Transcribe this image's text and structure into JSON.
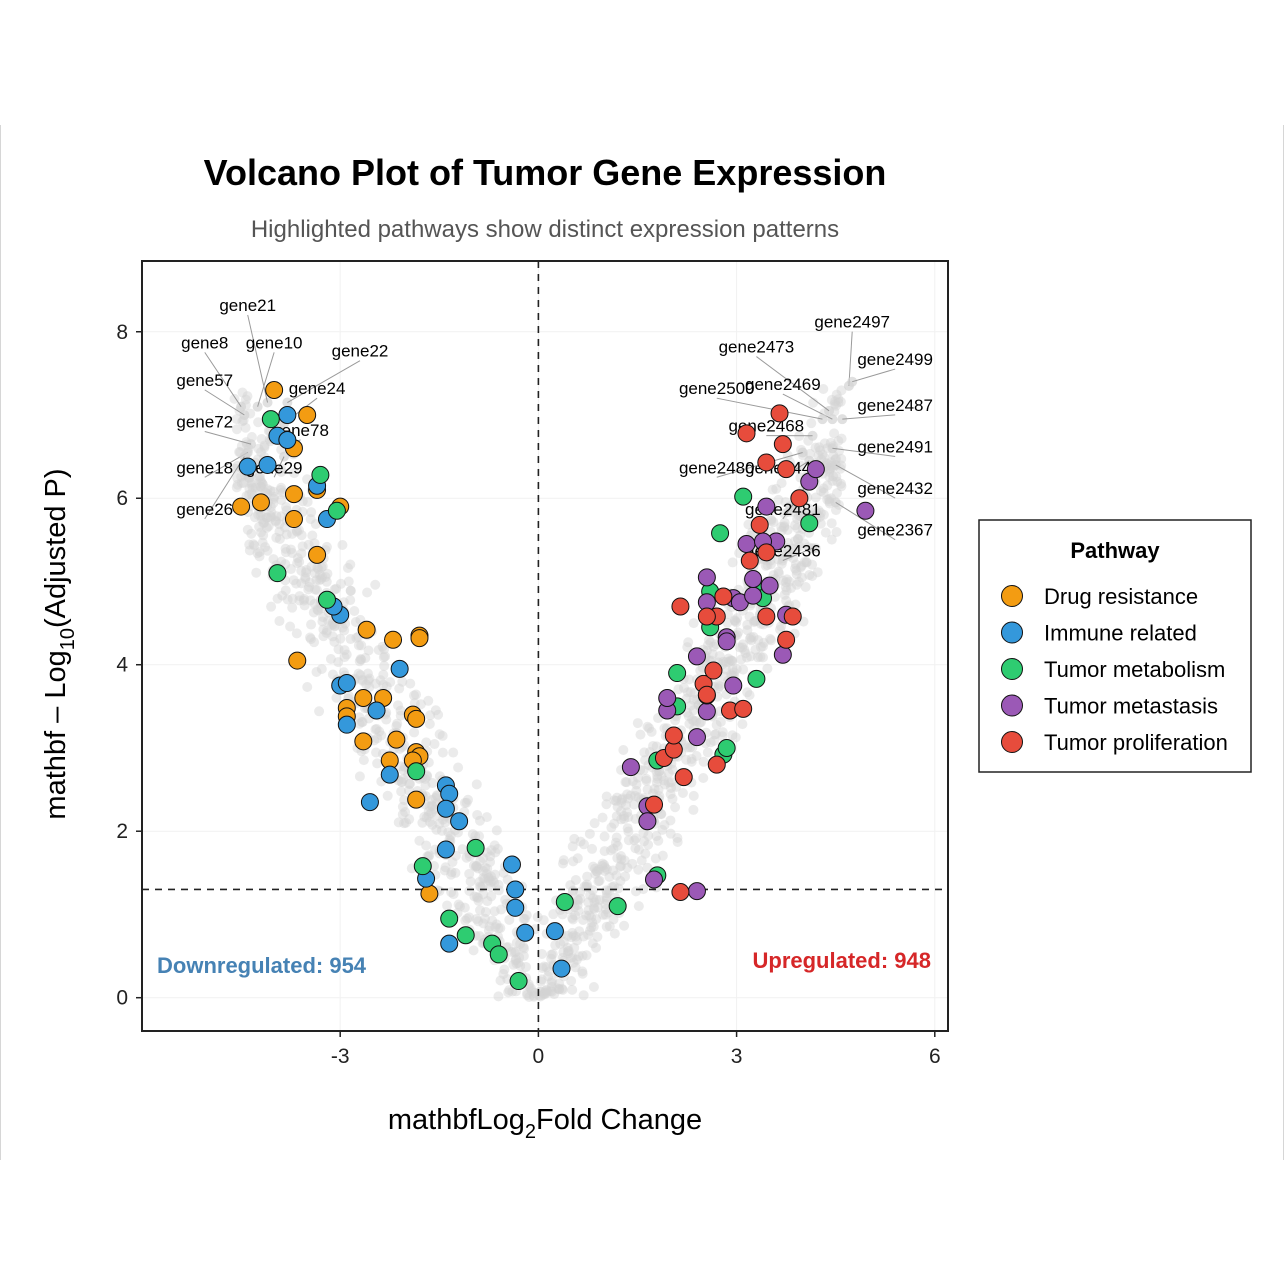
{
  "chart_data": {
    "type": "scatter",
    "title": "Volcano Plot of Tumor Gene Expression",
    "subtitle": "Highlighted pathways show distinct expression patterns",
    "xlabel": {
      "prefix": "mathbfLog",
      "sub": "2",
      "suffix": "Fold Change"
    },
    "ylabel": {
      "prefix": "mathbf – Log",
      "sub": "10",
      "suffix": "(Adjusted P)"
    },
    "xlim": [
      -6,
      6.2
    ],
    "ylim": [
      -0.4,
      8.85
    ],
    "x_ticks": [
      -3,
      0,
      3,
      6
    ],
    "y_ticks": [
      0,
      2,
      4,
      6,
      8
    ],
    "grid": true,
    "thresholds": {
      "log2fc": 0,
      "neg_log10_p": 1.3
    },
    "annotations": {
      "down": {
        "text": "Downregulated: 954",
        "color": "#4682b4"
      },
      "up": {
        "text": "Upregulated: 948",
        "color": "#d62728"
      }
    },
    "legend": {
      "title": "Pathway",
      "placement": "right",
      "items": [
        {
          "name": "Drug resistance",
          "color": "#f39c12"
        },
        {
          "name": "Immune related",
          "color": "#3498db"
        },
        {
          "name": "Tumor metabolism",
          "color": "#2ecc71"
        },
        {
          "name": "Tumor metastasis",
          "color": "#9b59b6"
        },
        {
          "name": "Tumor proliferation",
          "color": "#e74c3c"
        }
      ]
    },
    "background_color": "#d3d3d3",
    "series": [
      {
        "name": "Drug resistance",
        "color": "#f39c12",
        "points": [
          [
            -4.0,
            7.3
          ],
          [
            -3.5,
            7.0
          ],
          [
            -3.7,
            6.6
          ],
          [
            -4.5,
            5.9
          ],
          [
            -4.2,
            5.95
          ],
          [
            -3.7,
            6.05
          ],
          [
            -3.35,
            6.1
          ],
          [
            -3.7,
            5.75
          ],
          [
            -3.0,
            5.9
          ],
          [
            -3.35,
            5.32
          ],
          [
            -3.65,
            4.05
          ],
          [
            -2.6,
            4.42
          ],
          [
            -2.2,
            4.3
          ],
          [
            -1.8,
            4.35
          ],
          [
            -1.8,
            4.32
          ],
          [
            -2.65,
            3.6
          ],
          [
            -2.35,
            3.6
          ],
          [
            -2.9,
            3.48
          ],
          [
            -2.9,
            3.38
          ],
          [
            -1.9,
            3.4
          ],
          [
            -1.85,
            3.35
          ],
          [
            -2.65,
            3.08
          ],
          [
            -2.15,
            3.1
          ],
          [
            -1.85,
            2.95
          ],
          [
            -1.8,
            2.9
          ],
          [
            -1.9,
            2.85
          ],
          [
            -2.25,
            2.85
          ],
          [
            -1.85,
            2.38
          ],
          [
            -1.65,
            1.25
          ]
        ]
      },
      {
        "name": "Immune related",
        "color": "#3498db",
        "points": [
          [
            -3.8,
            7.0
          ],
          [
            -3.95,
            6.75
          ],
          [
            -3.8,
            6.7
          ],
          [
            -4.4,
            6.38
          ],
          [
            -4.1,
            6.4
          ],
          [
            -3.35,
            6.15
          ],
          [
            -3.2,
            5.75
          ],
          [
            -3.0,
            4.6
          ],
          [
            -3.1,
            4.7
          ],
          [
            -3.0,
            3.75
          ],
          [
            -2.9,
            3.78
          ],
          [
            -2.9,
            3.28
          ],
          [
            -2.45,
            3.45
          ],
          [
            -2.1,
            3.95
          ],
          [
            -2.25,
            2.68
          ],
          [
            -2.55,
            2.35
          ],
          [
            -1.4,
            2.55
          ],
          [
            -1.35,
            2.45
          ],
          [
            -1.4,
            2.27
          ],
          [
            -1.2,
            2.12
          ],
          [
            -1.4,
            1.78
          ],
          [
            -1.7,
            1.43
          ],
          [
            -1.35,
            0.65
          ],
          [
            -0.4,
            1.6
          ],
          [
            -0.35,
            1.3
          ],
          [
            -0.35,
            1.08
          ],
          [
            -0.2,
            0.78
          ],
          [
            0.25,
            0.8
          ],
          [
            0.35,
            0.35
          ]
        ]
      },
      {
        "name": "Tumor metabolism",
        "color": "#2ecc71",
        "points": [
          [
            -4.05,
            6.95
          ],
          [
            -3.3,
            6.28
          ],
          [
            -3.05,
            5.85
          ],
          [
            -3.95,
            5.1
          ],
          [
            -3.2,
            4.78
          ],
          [
            -1.85,
            2.72
          ],
          [
            -1.75,
            1.58
          ],
          [
            -1.35,
            0.95
          ],
          [
            -1.1,
            0.75
          ],
          [
            -0.95,
            1.8
          ],
          [
            -0.7,
            0.65
          ],
          [
            -0.6,
            0.52
          ],
          [
            -0.3,
            0.2
          ],
          [
            0.4,
            1.15
          ],
          [
            1.2,
            1.1
          ],
          [
            1.8,
            1.47
          ],
          [
            1.8,
            2.85
          ],
          [
            2.1,
            3.5
          ],
          [
            2.1,
            3.9
          ],
          [
            2.6,
            4.45
          ],
          [
            2.6,
            4.88
          ],
          [
            2.8,
            2.92
          ],
          [
            2.85,
            3.0
          ],
          [
            2.75,
            5.58
          ],
          [
            3.1,
            6.02
          ],
          [
            3.35,
            4.88
          ],
          [
            3.4,
            4.8
          ],
          [
            3.3,
            3.83
          ],
          [
            4.1,
            5.7
          ]
        ]
      },
      {
        "name": "Tumor metastasis",
        "color": "#9b59b6",
        "points": [
          [
            1.4,
            2.77
          ],
          [
            1.65,
            2.3
          ],
          [
            1.65,
            2.12
          ],
          [
            1.75,
            1.42
          ],
          [
            2.4,
            1.28
          ],
          [
            1.95,
            3.45
          ],
          [
            1.95,
            3.6
          ],
          [
            2.4,
            3.13
          ],
          [
            2.4,
            4.1
          ],
          [
            2.55,
            5.05
          ],
          [
            2.55,
            4.75
          ],
          [
            2.55,
            3.44
          ],
          [
            2.85,
            4.33
          ],
          [
            2.85,
            4.28
          ],
          [
            2.95,
            3.75
          ],
          [
            2.95,
            4.8
          ],
          [
            3.05,
            4.75
          ],
          [
            3.15,
            5.45
          ],
          [
            3.25,
            4.83
          ],
          [
            3.25,
            5.03
          ],
          [
            3.45,
            5.9
          ],
          [
            3.5,
            4.95
          ],
          [
            3.6,
            5.48
          ],
          [
            3.7,
            4.12
          ],
          [
            3.75,
            4.6
          ],
          [
            4.1,
            6.2
          ],
          [
            4.2,
            6.35
          ],
          [
            4.95,
            5.85
          ],
          [
            3.4,
            5.48
          ]
        ]
      },
      {
        "name": "Tumor proliferation",
        "color": "#e74c3c",
        "points": [
          [
            1.75,
            2.32
          ],
          [
            1.9,
            2.88
          ],
          [
            2.05,
            2.98
          ],
          [
            2.05,
            3.15
          ],
          [
            2.15,
            4.7
          ],
          [
            2.2,
            2.65
          ],
          [
            2.15,
            1.27
          ],
          [
            2.5,
            3.77
          ],
          [
            2.55,
            3.63
          ],
          [
            2.65,
            3.93
          ],
          [
            2.7,
            2.8
          ],
          [
            2.8,
            4.82
          ],
          [
            2.9,
            3.45
          ],
          [
            3.1,
            3.47
          ],
          [
            3.15,
            6.78
          ],
          [
            3.2,
            5.25
          ],
          [
            3.35,
            5.68
          ],
          [
            3.45,
            6.43
          ],
          [
            3.45,
            5.35
          ],
          [
            3.45,
            4.58
          ],
          [
            3.65,
            7.02
          ],
          [
            3.7,
            6.65
          ],
          [
            3.75,
            6.35
          ],
          [
            3.75,
            4.3
          ],
          [
            3.85,
            4.58
          ],
          [
            3.95,
            6.0
          ],
          [
            2.7,
            4.58
          ],
          [
            2.55,
            4.58
          ],
          [
            2.55,
            3.64
          ]
        ]
      }
    ],
    "labeled_genes": [
      {
        "label": "gene21",
        "x": -4.1,
        "y": 7.15,
        "lx": -4.4,
        "ly": 8.25
      },
      {
        "label": "gene8",
        "x": -4.5,
        "y": 7.1,
        "lx": -5.05,
        "ly": 7.8
      },
      {
        "label": "gene10",
        "x": -4.25,
        "y": 7.1,
        "lx": -4.0,
        "ly": 7.8
      },
      {
        "label": "gene22",
        "x": -3.8,
        "y": 7.15,
        "lx": -2.7,
        "ly": 7.7
      },
      {
        "label": "gene57",
        "x": -4.45,
        "y": 7.0,
        "lx": -5.05,
        "ly": 7.35
      },
      {
        "label": "gene24",
        "x": -3.85,
        "y": 6.9,
        "lx": -3.35,
        "ly": 7.25
      },
      {
        "label": "gene72",
        "x": -4.35,
        "y": 6.65,
        "lx": -5.05,
        "ly": 6.85
      },
      {
        "label": "gene78",
        "x": -3.75,
        "y": 6.65,
        "lx": -3.6,
        "ly": 6.75
      },
      {
        "label": "gene18",
        "x": -4.4,
        "y": 6.55,
        "lx": -5.05,
        "ly": 6.3
      },
      {
        "label": "gene29",
        "x": -3.85,
        "y": 6.5,
        "lx": -4.0,
        "ly": 6.3
      },
      {
        "label": "gene26",
        "x": -4.45,
        "y": 6.5,
        "lx": -5.05,
        "ly": 5.8
      },
      {
        "label": "gene2497",
        "x": 4.7,
        "y": 7.35,
        "lx": 4.75,
        "ly": 8.05
      },
      {
        "label": "gene2473",
        "x": 4.4,
        "y": 7.05,
        "lx": 3.3,
        "ly": 7.75
      },
      {
        "label": "gene2499",
        "x": 4.75,
        "y": 7.4,
        "lx": 5.4,
        "ly": 7.6
      },
      {
        "label": "gene2469",
        "x": 4.45,
        "y": 6.95,
        "lx": 3.7,
        "ly": 7.3
      },
      {
        "label": "gene2500",
        "x": 4.3,
        "y": 6.95,
        "lx": 2.7,
        "ly": 7.25
      },
      {
        "label": "gene2487",
        "x": 4.6,
        "y": 6.95,
        "lx": 5.4,
        "ly": 7.05
      },
      {
        "label": "gene2468",
        "x": 4.15,
        "y": 6.75,
        "lx": 3.45,
        "ly": 6.8
      },
      {
        "label": "gene2491",
        "x": 4.45,
        "y": 6.6,
        "lx": 5.4,
        "ly": 6.55
      },
      {
        "label": "gene2446",
        "x": 4.1,
        "y": 6.45,
        "lx": 3.7,
        "ly": 6.3
      },
      {
        "label": "gene2480",
        "x": 4.0,
        "y": 6.55,
        "lx": 2.7,
        "ly": 6.3
      },
      {
        "label": "gene2432",
        "x": 4.5,
        "y": 6.4,
        "lx": 5.4,
        "ly": 6.05
      },
      {
        "label": "gene2481",
        "x": 4.05,
        "y": 6.15,
        "lx": 3.7,
        "ly": 5.8
      },
      {
        "label": "gene2367",
        "x": 4.5,
        "y": 5.95,
        "lx": 5.4,
        "ly": 5.55
      },
      {
        "label": "gene2436",
        "x": 4.15,
        "y": 5.4,
        "lx": 3.7,
        "ly": 5.3
      }
    ]
  }
}
